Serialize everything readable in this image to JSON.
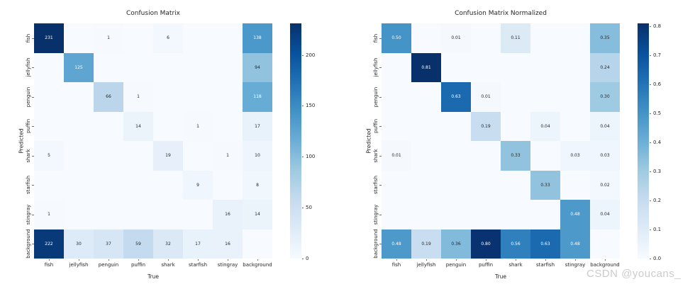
{
  "watermark": "CSDN @youcans_",
  "categories": [
    "fish",
    "jellyfish",
    "penguin",
    "puffin",
    "shark",
    "starfish",
    "stingray",
    "background"
  ],
  "colors": {
    "colormap": "Blues",
    "cell_text_dark": "#262626",
    "cell_text_light": "#ffffff",
    "axis_text": "#262626",
    "watermark": "#cbcbcb",
    "background": "#ffffff",
    "heatmap_min": "#f7fbff",
    "heatmap_max": "#08306b"
  },
  "chart_data": [
    {
      "type": "heatmap",
      "title": "Confusion Matrix",
      "xlabel": "True",
      "ylabel": "Predicted",
      "x_categories": [
        "fish",
        "jellyfish",
        "penguin",
        "puffin",
        "shark",
        "starfish",
        "stingray",
        "background"
      ],
      "y_categories": [
        "fish",
        "jellyfish",
        "penguin",
        "puffin",
        "shark",
        "starfish",
        "stingray",
        "background"
      ],
      "vmin": 0,
      "vmax": 231,
      "decimals": 0,
      "legend_position": "right-colorbar",
      "grid": false,
      "matrix": [
        [
          231,
          null,
          1,
          null,
          6,
          null,
          null,
          138
        ],
        [
          null,
          125,
          null,
          null,
          null,
          null,
          null,
          94
        ],
        [
          null,
          null,
          66,
          1,
          null,
          null,
          null,
          118
        ],
        [
          null,
          null,
          null,
          14,
          null,
          1,
          null,
          17
        ],
        [
          5,
          null,
          null,
          null,
          19,
          null,
          1,
          10
        ],
        [
          null,
          null,
          null,
          null,
          null,
          9,
          null,
          8
        ],
        [
          1,
          null,
          null,
          null,
          null,
          null,
          16,
          14
        ],
        [
          222,
          30,
          37,
          59,
          32,
          17,
          16,
          null
        ]
      ],
      "colorbar": {
        "values": [
          0,
          50,
          100,
          150,
          200
        ],
        "labels": [
          "0",
          "50",
          "100",
          "150",
          "200"
        ]
      }
    },
    {
      "type": "heatmap",
      "title": "Confusion Matrix Normalized",
      "xlabel": "True",
      "ylabel": "Predicted",
      "x_categories": [
        "fish",
        "jellyfish",
        "penguin",
        "puffin",
        "shark",
        "starfish",
        "stingray",
        "background"
      ],
      "y_categories": [
        "fish",
        "jellyfish",
        "penguin",
        "puffin",
        "shark",
        "starfish",
        "stingray",
        "background"
      ],
      "vmin": 0,
      "vmax": 0.81,
      "decimals": 2,
      "legend_position": "right-colorbar",
      "grid": false,
      "matrix": [
        [
          0.5,
          null,
          0.01,
          null,
          0.11,
          null,
          null,
          0.35
        ],
        [
          null,
          0.81,
          null,
          null,
          null,
          null,
          null,
          0.24
        ],
        [
          null,
          null,
          0.63,
          0.01,
          null,
          null,
          null,
          0.3
        ],
        [
          null,
          null,
          null,
          0.19,
          null,
          0.04,
          null,
          0.04
        ],
        [
          0.01,
          null,
          null,
          null,
          0.33,
          null,
          0.03,
          0.03
        ],
        [
          null,
          null,
          null,
          null,
          null,
          0.33,
          null,
          0.02
        ],
        [
          null,
          null,
          null,
          null,
          null,
          null,
          0.48,
          0.04
        ],
        [
          0.48,
          0.19,
          0.36,
          0.8,
          0.56,
          0.63,
          0.48,
          null
        ]
      ],
      "colorbar": {
        "values": [
          0,
          0.1,
          0.2,
          0.3,
          0.4,
          0.5,
          0.6,
          0.7,
          0.8
        ],
        "labels": [
          "0.0",
          "0.1",
          "0.2",
          "0.3",
          "0.4",
          "0.5",
          "0.6",
          "0.7",
          "0.8"
        ]
      }
    }
  ]
}
